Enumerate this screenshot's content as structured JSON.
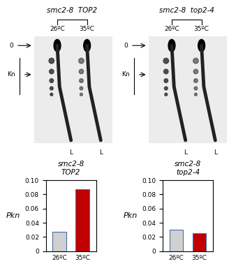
{
  "gels": [
    {
      "header": "smc2-8  TOP2",
      "lanes": [
        "26ºC",
        "35ºC"
      ],
      "markers": [
        "0",
        "Kn"
      ],
      "lane_bottom_labels": [
        "L",
        "L"
      ]
    },
    {
      "header": "smc2-8  top2-4",
      "lanes": [
        "26ºC",
        "35ºC"
      ],
      "markers": [
        "0",
        "Kn"
      ],
      "lane_bottom_labels": [
        "L",
        "L"
      ]
    }
  ],
  "chart_data": [
    {
      "type": "bar",
      "title": "smc2-8\nTOP2",
      "ylabel": "Pkn",
      "categories": [
        "26ºC",
        "35ºC"
      ],
      "values": [
        0.027,
        0.087
      ],
      "colors": [
        "#d0d0d0",
        "#c00000"
      ],
      "ylim": [
        0,
        0.1
      ],
      "yticks": [
        0,
        0.02,
        0.04,
        0.06,
        0.08,
        {
          "value": 0.1,
          "label": "0.10"
        }
      ]
    },
    {
      "type": "bar",
      "title": "smc2-8\ntop2-4",
      "ylabel": "Pkn",
      "categories": [
        "26ºC",
        "35ºC"
      ],
      "values": [
        0.03,
        0.025
      ],
      "colors": [
        "#d0d0d0",
        "#c00000"
      ],
      "ylim": [
        0,
        0.1
      ],
      "yticks": [
        0,
        0.02,
        0.04,
        0.06,
        0.08,
        {
          "value": 0.1,
          "label": "0.10"
        }
      ]
    }
  ]
}
